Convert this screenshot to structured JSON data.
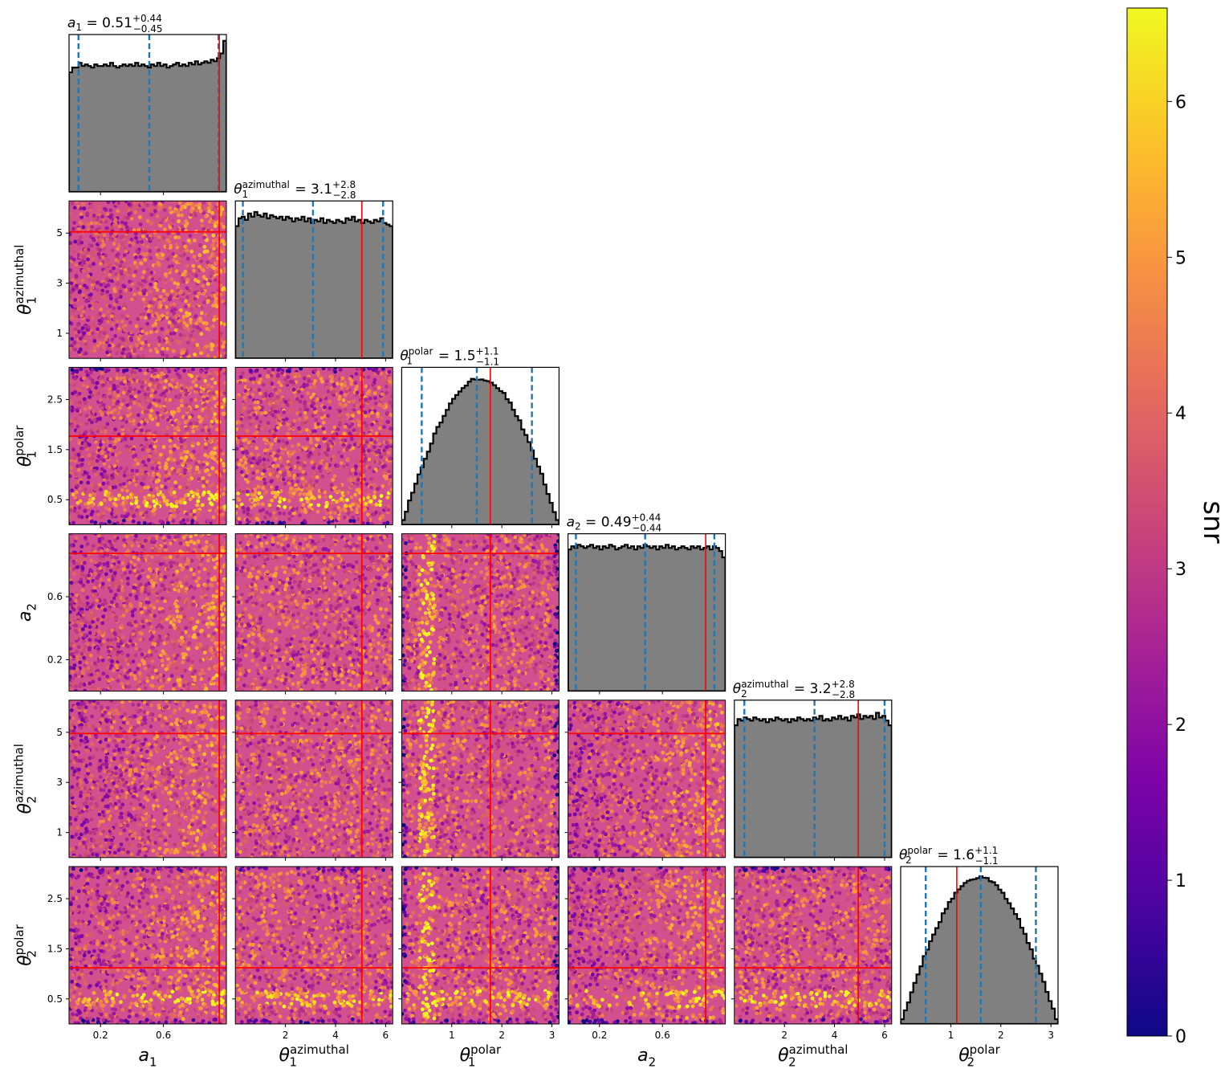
{
  "chart_data": {
    "type": "corner",
    "parameters": [
      {
        "key": "a1",
        "sym": "a",
        "sub": "1",
        "sup": "",
        "range": [
          0,
          1
        ],
        "ticks": [
          0.2,
          0.6
        ],
        "tick_labels": [
          "0.2",
          "0.6"
        ],
        "truth": 0.955,
        "median": 0.51,
        "plus": 0.44,
        "minus": 0.45,
        "title": {
          "sym": "a",
          "sub": "1",
          "sup": "",
          "text": " = 0.51",
          "up": "+0.44",
          "down": "−0.45"
        },
        "hist": [
          0.76,
          0.79,
          0.79,
          0.82,
          0.8,
          0.81,
          0.8,
          0.79,
          0.81,
          0.8,
          0.8,
          0.81,
          0.8,
          0.82,
          0.8,
          0.79,
          0.8,
          0.81,
          0.8,
          0.81,
          0.8,
          0.82,
          0.8,
          0.81,
          0.8,
          0.79,
          0.81,
          0.8,
          0.82,
          0.8,
          0.81,
          0.79,
          0.8,
          0.81,
          0.82,
          0.8,
          0.81,
          0.8,
          0.82,
          0.81,
          0.83,
          0.81,
          0.82,
          0.83,
          0.82,
          0.84,
          0.83,
          0.85,
          0.88,
          0.96
        ]
      },
      {
        "key": "th1az",
        "sym": "θ",
        "sub": "1",
        "sup": "azimuthal",
        "range": [
          0,
          6.2832
        ],
        "ticks": [
          1,
          3,
          5
        ],
        "tick_labels": [
          "1",
          "3",
          "5"
        ],
        "xticks": [
          2,
          4,
          6
        ],
        "xtick_labels": [
          "2",
          "4",
          "6"
        ],
        "truth": 5.05,
        "median": 3.1,
        "plus": 2.8,
        "minus": 2.8,
        "title": {
          "sym": "θ",
          "sub": "1",
          "sup": "azimuthal",
          "text": " = 3.1",
          "up": "+2.8",
          "down": "−2.8"
        },
        "hist": [
          0.84,
          0.89,
          0.9,
          0.88,
          0.92,
          0.9,
          0.93,
          0.91,
          0.9,
          0.92,
          0.89,
          0.91,
          0.9,
          0.89,
          0.9,
          0.88,
          0.9,
          0.89,
          0.87,
          0.89,
          0.88,
          0.9,
          0.87,
          0.89,
          0.86,
          0.88,
          0.87,
          0.89,
          0.86,
          0.88,
          0.87,
          0.86,
          0.88,
          0.87,
          0.86,
          0.89,
          0.88,
          0.9,
          0.87,
          0.88,
          0.86,
          0.88,
          0.87,
          0.86,
          0.88,
          0.87,
          0.89,
          0.86,
          0.85,
          0.84
        ]
      },
      {
        "key": "th1pol",
        "sym": "θ",
        "sub": "1",
        "sup": "polar",
        "range": [
          0,
          3.1416
        ],
        "ticks": [
          0.5,
          1.5,
          2.5
        ],
        "tick_labels": [
          "0.5",
          "1.5",
          "2.5"
        ],
        "xticks": [
          1,
          2,
          3
        ],
        "xtick_labels": [
          "1",
          "2",
          "3"
        ],
        "truth": 1.77,
        "median": 1.5,
        "plus": 1.1,
        "minus": 1.1,
        "title": {
          "sym": "θ",
          "sub": "1",
          "sup": "polar",
          "text": " = 1.5",
          "up": "+1.1",
          "down": "−1.1"
        },
        "hist": "sine"
      },
      {
        "key": "a2",
        "sym": "a",
        "sub": "2",
        "sup": "",
        "range": [
          0,
          1
        ],
        "ticks": [
          0.2,
          0.6
        ],
        "tick_labels": [
          "0.2",
          "0.6"
        ],
        "truth": 0.875,
        "median": 0.49,
        "plus": 0.44,
        "minus": 0.44,
        "title": {
          "sym": "a",
          "sub": "2",
          "sup": "",
          "text": " = 0.49",
          "up": "+0.44",
          "down": "−0.44"
        },
        "hist": [
          0.9,
          0.92,
          0.91,
          0.93,
          0.92,
          0.91,
          0.92,
          0.93,
          0.91,
          0.92,
          0.9,
          0.92,
          0.91,
          0.93,
          0.92,
          0.9,
          0.91,
          0.92,
          0.93,
          0.91,
          0.92,
          0.9,
          0.92,
          0.91,
          0.93,
          0.92,
          0.91,
          0.92,
          0.9,
          0.92,
          0.91,
          0.93,
          0.91,
          0.92,
          0.9,
          0.91,
          0.92,
          0.91,
          0.9,
          0.92,
          0.91,
          0.92,
          0.9,
          0.91,
          0.92,
          0.9,
          0.92,
          0.91,
          0.89,
          0.85
        ]
      },
      {
        "key": "th2az",
        "sym": "θ",
        "sub": "2",
        "sup": "azimuthal",
        "range": [
          0,
          6.2832
        ],
        "ticks": [
          1,
          3,
          5
        ],
        "tick_labels": [
          "1",
          "3",
          "5"
        ],
        "xticks": [
          2,
          4,
          6
        ],
        "xtick_labels": [
          "2",
          "4",
          "6"
        ],
        "truth": 4.95,
        "median": 3.2,
        "plus": 2.8,
        "minus": 2.8,
        "title": {
          "sym": "θ",
          "sub": "2",
          "sup": "azimuthal",
          "text": " = 3.2",
          "up": "+2.8",
          "down": "−2.8"
        },
        "hist": [
          0.84,
          0.88,
          0.87,
          0.89,
          0.88,
          0.87,
          0.89,
          0.88,
          0.87,
          0.88,
          0.86,
          0.88,
          0.87,
          0.89,
          0.88,
          0.87,
          0.88,
          0.86,
          0.88,
          0.87,
          0.89,
          0.88,
          0.87,
          0.88,
          0.87,
          0.89,
          0.88,
          0.9,
          0.87,
          0.88,
          0.87,
          0.89,
          0.88,
          0.9,
          0.88,
          0.89,
          0.87,
          0.9,
          0.89,
          0.91,
          0.88,
          0.9,
          0.89,
          0.9,
          0.88,
          0.92,
          0.89,
          0.9,
          0.87,
          0.84
        ]
      },
      {
        "key": "th2pol",
        "sym": "θ",
        "sub": "2",
        "sup": "polar",
        "range": [
          0,
          3.1416
        ],
        "ticks": [
          0.5,
          1.5,
          2.5
        ],
        "tick_labels": [
          "0.5",
          "1.5",
          "2.5"
        ],
        "xticks": [
          1,
          2,
          3
        ],
        "xtick_labels": [
          "1",
          "2",
          "3"
        ],
        "truth": 1.12,
        "median": 1.6,
        "plus": 1.1,
        "minus": 1.1,
        "title": {
          "sym": "θ",
          "sub": "2",
          "sup": "polar",
          "text": " = 1.6",
          "up": "+1.1",
          "down": "−1.1"
        },
        "hist": "sine"
      }
    ],
    "x_ticks_bottom": [
      {
        "ticks": [
          0.2,
          0.6
        ],
        "labels": [
          "0.2",
          "0.6"
        ]
      },
      {
        "ticks": [
          2,
          4,
          6
        ],
        "labels": [
          "2",
          "4",
          "6"
        ]
      },
      {
        "ticks": [
          1,
          2,
          3
        ],
        "labels": [
          "1",
          "2",
          "3"
        ]
      },
      {
        "ticks": [
          0.2,
          0.6
        ],
        "labels": [
          "0.2",
          "0.6"
        ]
      },
      {
        "ticks": [
          2,
          4,
          6
        ],
        "labels": [
          "2",
          "4",
          "6"
        ]
      },
      {
        "ticks": [
          1,
          2,
          3
        ],
        "labels": [
          "1",
          "2",
          "3"
        ]
      }
    ],
    "colorbar": {
      "label": "snr",
      "min": 0,
      "max": 6.6,
      "ticks": [
        0,
        1,
        2,
        3,
        4,
        5,
        6
      ],
      "colormap": "plasma"
    },
    "colors": {
      "hist_fill": "#808080",
      "hist_edge": "#000000",
      "quantile_line": "#1f77b4",
      "truth_line": "#ff0000"
    },
    "quantile_style": "dashed",
    "grid": false
  }
}
